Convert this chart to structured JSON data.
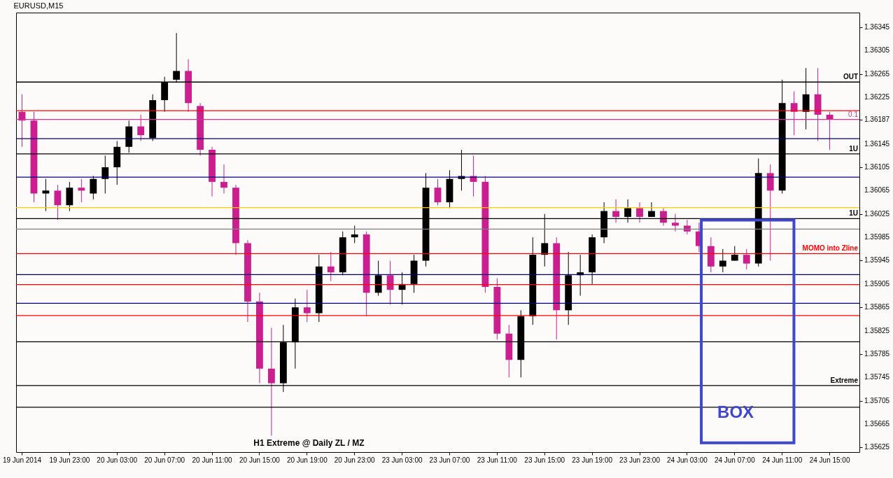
{
  "chart_data": {
    "type": "candlestick",
    "title": "EURUSD,M15",
    "categories": [
      "19 Jun 2014",
      null,
      null,
      null,
      "19 Jun 23:00",
      null,
      null,
      null,
      "20 Jun 03:00",
      null,
      null,
      null,
      "20 Jun 07:00",
      null,
      null,
      null,
      "20 Jun 11:00",
      null,
      null,
      null,
      "20 Jun 15:00",
      null,
      null,
      null,
      "20 Jun 19:00",
      null,
      null,
      null,
      "20 Jun 23:00",
      null,
      null,
      null,
      "23 Jun 03:00",
      null,
      null,
      null,
      "23 Jun 07:00",
      null,
      null,
      null,
      "23 Jun 11:00",
      null,
      null,
      null,
      "23 Jun 15:00",
      null,
      null,
      null,
      "23 Jun 19:00",
      null,
      null,
      null,
      "23 Jun 23:00",
      null,
      null,
      null,
      "24 Jun 03:00",
      null,
      null,
      null,
      "24 Jun 07:00",
      null,
      null,
      null,
      "24 Jun 11:00",
      null,
      null,
      null,
      "24 Jun 15:00"
    ],
    "ohlc": [
      [
        1.362,
        1.3623,
        1.3614,
        1.36185
      ],
      [
        1.36185,
        1.362,
        1.36045,
        1.3606
      ],
      [
        1.3606,
        1.36085,
        1.3603,
        1.36065
      ],
      [
        1.36065,
        1.36075,
        1.36015,
        1.3604
      ],
      [
        1.3604,
        1.3608,
        1.3603,
        1.3607
      ],
      [
        1.3607,
        1.36085,
        1.36045,
        1.36065
      ],
      [
        1.3606,
        1.3609,
        1.3605,
        1.36085
      ],
      [
        1.36085,
        1.36125,
        1.3606,
        1.36105
      ],
      [
        1.36105,
        1.3615,
        1.36075,
        1.3614
      ],
      [
        1.3614,
        1.36185,
        1.3613,
        1.36175
      ],
      [
        1.36175,
        1.36195,
        1.3615,
        1.3616
      ],
      [
        1.36155,
        1.3623,
        1.3615,
        1.3622
      ],
      [
        1.3622,
        1.3626,
        1.362,
        1.3625
      ],
      [
        1.36255,
        1.36335,
        1.3625,
        1.3627
      ],
      [
        1.3627,
        1.3629,
        1.362,
        1.36215
      ],
      [
        1.3621,
        1.36215,
        1.36125,
        1.36135
      ],
      [
        1.36135,
        1.3614,
        1.36055,
        1.3608
      ],
      [
        1.3608,
        1.3611,
        1.3606,
        1.3607
      ],
      [
        1.3607,
        1.36075,
        1.35955,
        1.35975
      ],
      [
        1.35975,
        1.3598,
        1.3584,
        1.35875
      ],
      [
        1.35875,
        1.3589,
        1.35735,
        1.3576
      ],
      [
        1.3576,
        1.3583,
        1.35645,
        1.35735
      ],
      [
        1.35735,
        1.35835,
        1.3572,
        1.35805
      ],
      [
        1.35805,
        1.3588,
        1.3576,
        1.35865
      ],
      [
        1.35865,
        1.35895,
        1.3584,
        1.35855
      ],
      [
        1.35855,
        1.35955,
        1.3584,
        1.35935
      ],
      [
        1.35935,
        1.3596,
        1.3591,
        1.35925
      ],
      [
        1.35925,
        1.35995,
        1.3592,
        1.35985
      ],
      [
        1.35985,
        1.36005,
        1.35975,
        1.3599
      ],
      [
        1.3599,
        1.35995,
        1.3585,
        1.3589
      ],
      [
        1.3589,
        1.35945,
        1.35885,
        1.3592
      ],
      [
        1.3592,
        1.35945,
        1.3587,
        1.35895
      ],
      [
        1.35895,
        1.35925,
        1.3587,
        1.35905
      ],
      [
        1.35905,
        1.35955,
        1.3589,
        1.35945
      ],
      [
        1.35945,
        1.36095,
        1.35935,
        1.3607
      ],
      [
        1.3607,
        1.36085,
        1.3604,
        1.36045
      ],
      [
        1.36045,
        1.361,
        1.36035,
        1.36085
      ],
      [
        1.36085,
        1.36135,
        1.36065,
        1.3609
      ],
      [
        1.3609,
        1.36125,
        1.36055,
        1.3608
      ],
      [
        1.3608,
        1.3609,
        1.3589,
        1.359
      ],
      [
        1.359,
        1.35915,
        1.3581,
        1.3582
      ],
      [
        1.3582,
        1.35835,
        1.35745,
        1.35775
      ],
      [
        1.35775,
        1.3586,
        1.35745,
        1.3585
      ],
      [
        1.3585,
        1.35985,
        1.35835,
        1.35955
      ],
      [
        1.35955,
        1.36025,
        1.35935,
        1.35975
      ],
      [
        1.35975,
        1.35985,
        1.3581,
        1.3586
      ],
      [
        1.3586,
        1.3596,
        1.35835,
        1.3592
      ],
      [
        1.3592,
        1.35955,
        1.35885,
        1.35925
      ],
      [
        1.35925,
        1.3599,
        1.35905,
        1.35985
      ],
      [
        1.35985,
        1.36045,
        1.35975,
        1.3603
      ],
      [
        1.3603,
        1.3605,
        1.3601,
        1.3602
      ],
      [
        1.3602,
        1.3605,
        1.3601,
        1.36035
      ],
      [
        1.36035,
        1.36045,
        1.3601,
        1.3602
      ],
      [
        1.3602,
        1.36045,
        1.3602,
        1.3603
      ],
      [
        1.3603,
        1.36035,
        1.36005,
        1.3601
      ],
      [
        1.3601,
        1.36025,
        1.35995,
        1.36005
      ],
      [
        1.36005,
        1.36015,
        1.3599,
        1.35995
      ],
      [
        1.35995,
        1.3601,
        1.3596,
        1.3597
      ],
      [
        1.3597,
        1.35985,
        1.35925,
        1.35935
      ],
      [
        1.35935,
        1.35965,
        1.35925,
        1.35945
      ],
      [
        1.35945,
        1.3597,
        1.35945,
        1.35955
      ],
      [
        1.35955,
        1.35965,
        1.3593,
        1.3594
      ],
      [
        1.3594,
        1.3612,
        1.35935,
        1.36095
      ],
      [
        1.36095,
        1.3611,
        1.35945,
        1.36065
      ],
      [
        1.36065,
        1.36255,
        1.3606,
        1.36215
      ],
      [
        1.36215,
        1.36235,
        1.3616,
        1.362
      ],
      [
        1.362,
        1.36275,
        1.3617,
        1.3623
      ],
      [
        1.3623,
        1.36275,
        1.3615,
        1.36195
      ],
      [
        1.36195,
        1.362,
        1.36135,
        1.36187
      ]
    ],
    "colors": [
      "#cc1f8f",
      "#cc1f8f",
      "#000000",
      "#cc1f8f",
      "#000000",
      "#cc1f8f",
      "#000000",
      "#000000",
      "#000000",
      "#000000",
      "#cc1f8f",
      "#000000",
      "#000000",
      "#000000",
      "#cc1f8f",
      "#cc1f8f",
      "#cc1f8f",
      "#cc1f8f",
      "#cc1f8f",
      "#cc1f8f",
      "#cc1f8f",
      "#cc1f8f",
      "#000000",
      "#000000",
      "#cc1f8f",
      "#000000",
      "#cc1f8f",
      "#000000",
      "#000000",
      "#cc1f8f",
      "#000000",
      "#cc1f8f",
      "#000000",
      "#000000",
      "#000000",
      "#cc1f8f",
      "#000000",
      "#000000",
      "#cc1f8f",
      "#cc1f8f",
      "#cc1f8f",
      "#cc1f8f",
      "#000000",
      "#000000",
      "#000000",
      "#cc1f8f",
      "#000000",
      "#000000",
      "#000000",
      "#000000",
      "#cc1f8f",
      "#000000",
      "#cc1f8f",
      "#000000",
      "#cc1f8f",
      "#cc1f8f",
      "#cc1f8f",
      "#cc1f8f",
      "#cc1f8f",
      "#000000",
      "#000000",
      "#cc1f8f",
      "#000000",
      "#cc1f8f",
      "#000000",
      "#cc1f8f",
      "#000000",
      "#cc1f8f",
      "#cc1f8f"
    ],
    "ylim": [
      1.35617,
      1.3637
    ],
    "yticks": [
      1.35625,
      1.35665,
      1.35705,
      1.35745,
      1.35785,
      1.35825,
      1.35865,
      1.35905,
      1.35945,
      1.35985,
      1.36025,
      1.36065,
      1.36105,
      1.36145,
      1.36187,
      1.36225,
      1.36265,
      1.36305,
      1.36345
    ],
    "ref_lines": [
      {
        "axis": "y",
        "value": 1.36251,
        "label": "OUT",
        "color": "#000000"
      },
      {
        "axis": "y",
        "value": 1.36202,
        "color": "#ff0000"
      },
      {
        "axis": "y",
        "value": 1.36187,
        "color": "#cc3399"
      },
      {
        "axis": "y",
        "value": 1.36154,
        "color": "#000080"
      },
      {
        "axis": "y",
        "value": 1.36128,
        "label": "1U",
        "color": "#000000"
      },
      {
        "axis": "y",
        "value": 1.36088,
        "color": "#000080"
      },
      {
        "axis": "y",
        "value": 1.36036,
        "color": "#ffcc00"
      },
      {
        "axis": "y",
        "value": 1.36017,
        "label": "1U",
        "color": "#000000"
      },
      {
        "axis": "y",
        "value": 1.35999,
        "color": "#808080"
      },
      {
        "axis": "y",
        "value": 1.35957,
        "label": "MOMO into Zline",
        "color": "#ff0000"
      },
      {
        "axis": "y",
        "value": 1.35921,
        "color": "#000080"
      },
      {
        "axis": "y",
        "value": 1.35904,
        "color": "#ff0000"
      },
      {
        "axis": "y",
        "value": 1.35872,
        "color": "#000080"
      },
      {
        "axis": "y",
        "value": 1.35851,
        "color": "#ff0000"
      },
      {
        "axis": "y",
        "value": 1.35806,
        "color": "#000000"
      },
      {
        "axis": "y",
        "value": 1.35731,
        "label": "Extreme",
        "color": "#000000"
      },
      {
        "axis": "y",
        "value": 1.35694,
        "color": "#000000"
      }
    ],
    "annotations": [
      "H1 Extreme @ Daily ZL / MZ",
      "BOX",
      {
        "text": "0.1",
        "y": 1.36187
      }
    ]
  }
}
